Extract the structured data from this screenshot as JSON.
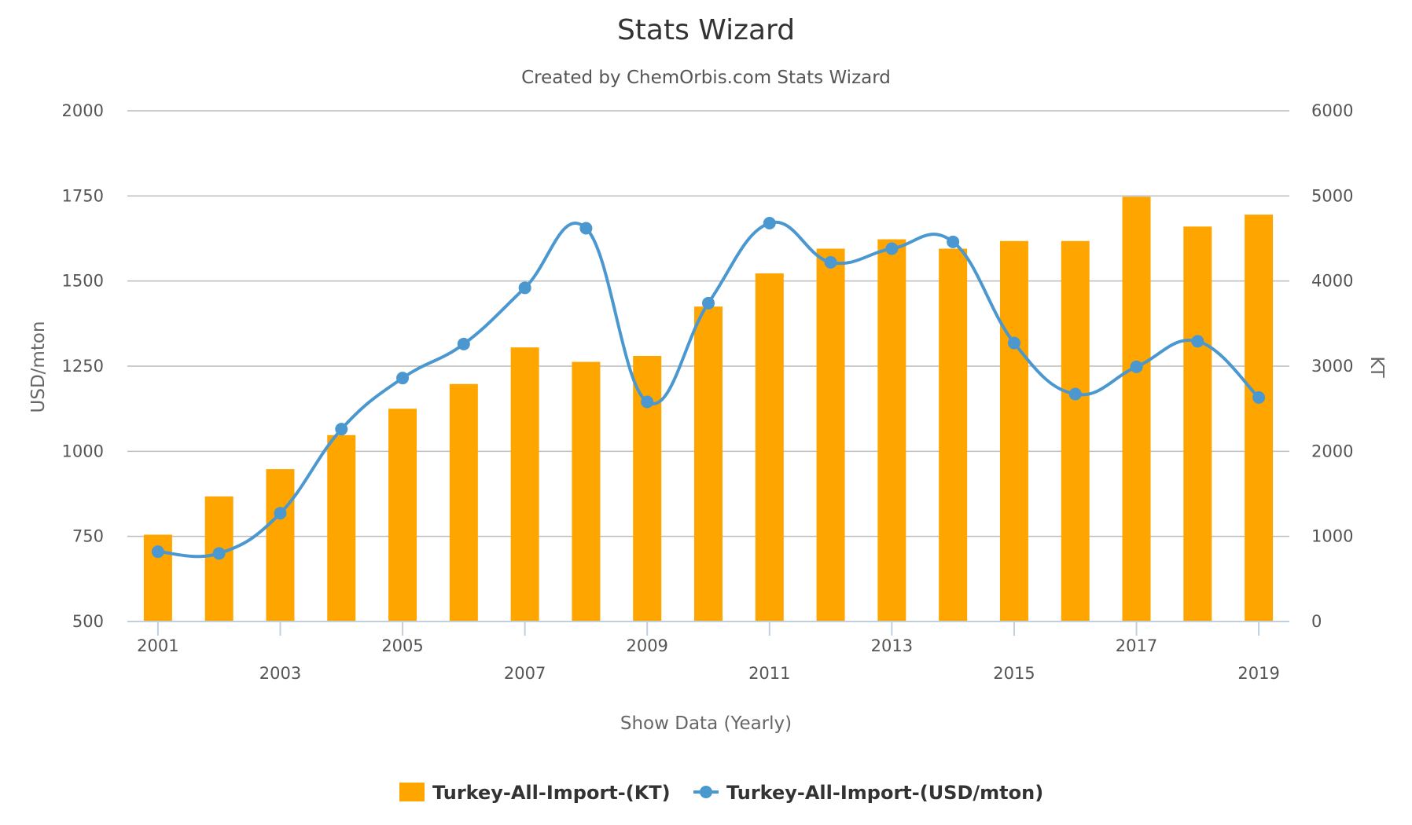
{
  "chart_data": {
    "type": "bar+line",
    "title": "Stats Wizard",
    "subtitle": "Created by ChemOrbis.com Stats Wizard",
    "xlabel": "Show Data (Yearly)",
    "ylabel_left": "USD/mton",
    "ylabel_right": "KT",
    "categories": [
      "2001",
      "2002",
      "2003",
      "2004",
      "2005",
      "2006",
      "2007",
      "2008",
      "2009",
      "2010",
      "2011",
      "2012",
      "2013",
      "2014",
      "2015",
      "2016",
      "2017",
      "2018",
      "2019"
    ],
    "x_tick_labels": [
      "2001",
      "2003",
      "2005",
      "2007",
      "2009",
      "2011",
      "2013",
      "2015",
      "2017",
      "2019"
    ],
    "y_left": {
      "min": 500,
      "max": 2000,
      "ticks": [
        "500",
        "750",
        "1000",
        "1250",
        "1500",
        "1750",
        "2000"
      ]
    },
    "y_right": {
      "min": 0,
      "max": 6000,
      "ticks": [
        "0",
        "1000",
        "2000",
        "3000",
        "4000",
        "5000",
        "6000"
      ]
    },
    "grid": true,
    "legend_position": "bottom-center",
    "series": [
      {
        "name": "Turkey-All-Import-(KT)",
        "type": "bar",
        "axis": "right",
        "color": "#FFA500",
        "values": [
          1020,
          1470,
          1790,
          2190,
          2500,
          2790,
          3220,
          3050,
          3120,
          3700,
          4090,
          4380,
          4490,
          4380,
          4470,
          4470,
          4990,
          4640,
          4780
        ]
      },
      {
        "name": "Turkey-All-Import-(USD/mton)",
        "type": "line",
        "axis": "left",
        "color": "#4A98CF",
        "values": [
          705,
          700,
          818,
          1065,
          1215,
          1315,
          1480,
          1655,
          1145,
          1435,
          1670,
          1555,
          1595,
          1615,
          1318,
          1168,
          1248,
          1323,
          1158
        ]
      }
    ]
  }
}
